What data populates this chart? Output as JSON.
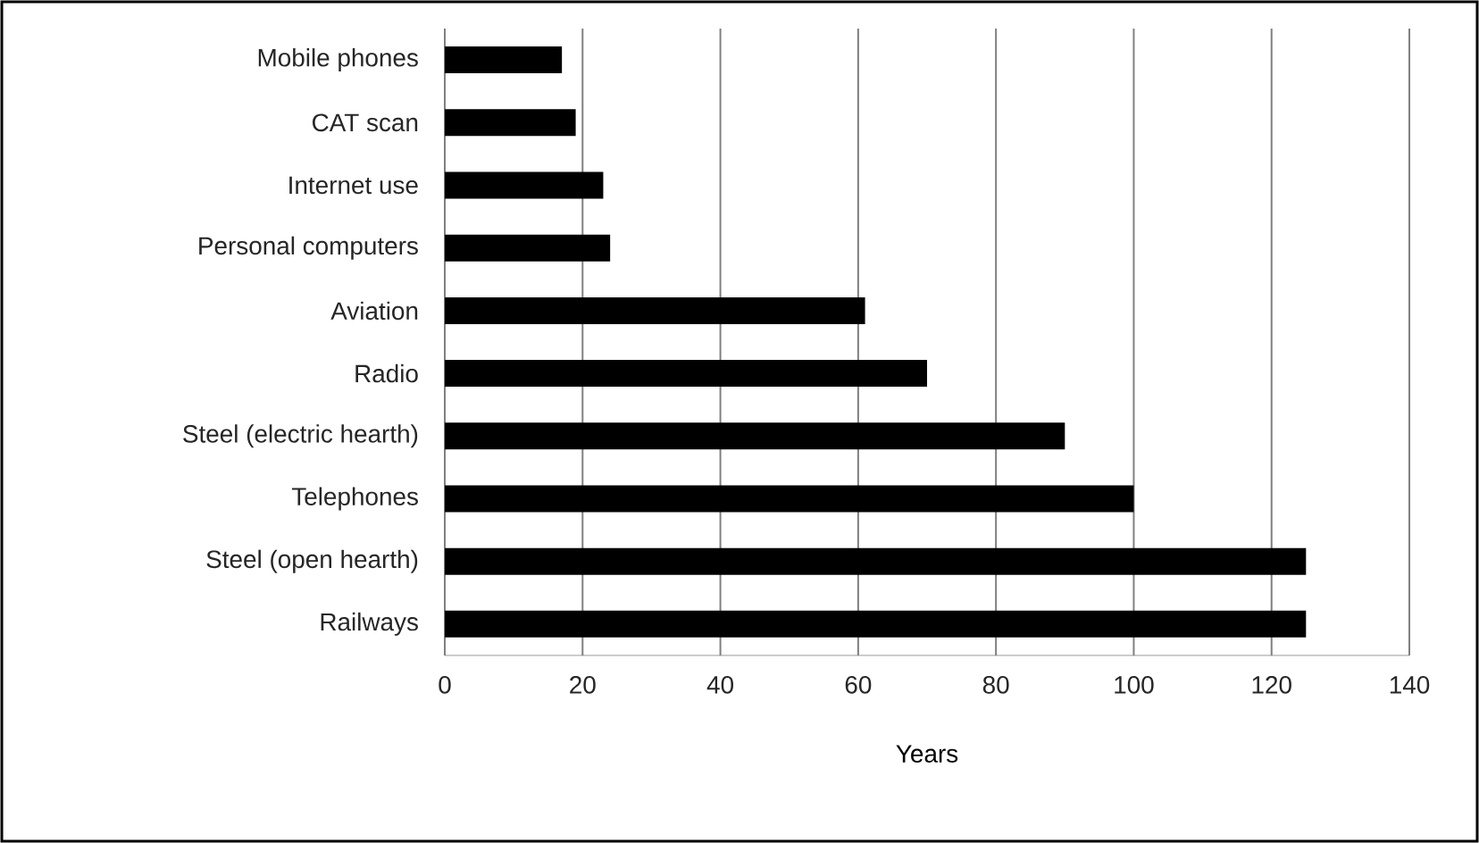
{
  "chart_data": {
    "type": "bar",
    "orientation": "horizontal",
    "xlabel": "Years",
    "categories": [
      "Mobile phones",
      "CAT scan",
      "Internet use",
      "Personal computers",
      "Aviation",
      "Radio",
      "Steel (electric hearth)",
      "Telephones",
      "Steel (open hearth)",
      "Railways"
    ],
    "values": [
      17,
      19,
      23,
      24,
      61,
      70,
      90,
      100,
      125,
      125
    ],
    "color": "#000000",
    "xlim": [
      0,
      140
    ],
    "xticks": [
      0,
      20,
      40,
      60,
      80,
      100,
      120,
      140
    ],
    "grid": "x"
  }
}
